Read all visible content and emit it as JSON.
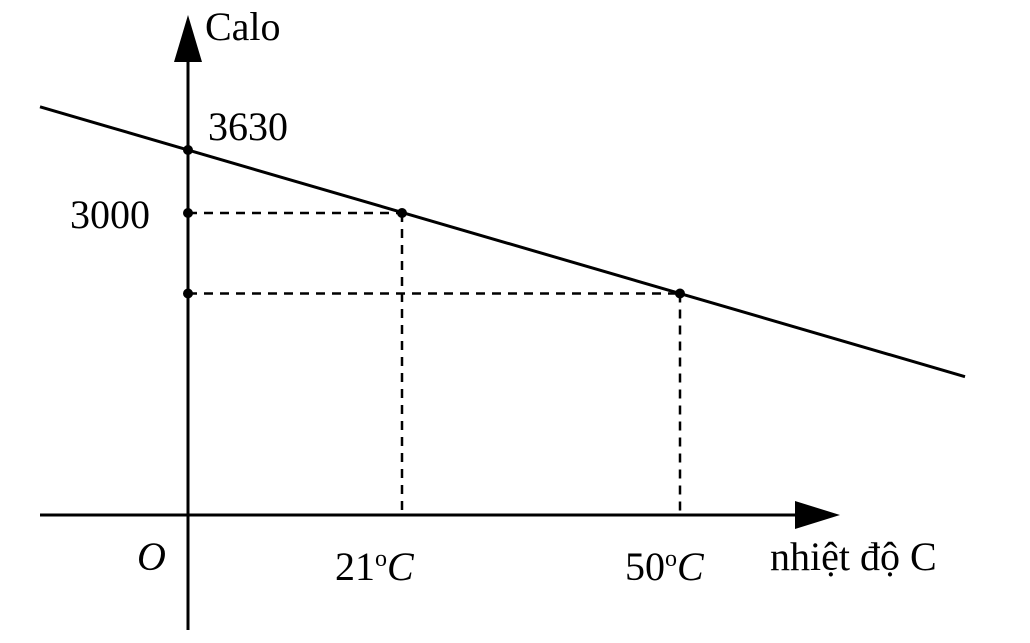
{
  "chart_data": {
    "type": "line",
    "title": "",
    "xlabel": "nhiệt độ C",
    "ylabel": "Calo",
    "origin_label": "O",
    "x_ticks": [
      {
        "value": 21,
        "number": "21",
        "sup": "o",
        "unit": "C"
      },
      {
        "value": 50,
        "number": "50",
        "sup": "o",
        "unit": "C"
      }
    ],
    "y_ticks": [
      {
        "value": 3630,
        "label": "3630"
      },
      {
        "value": 3000,
        "label": "3000"
      }
    ],
    "points": [
      {
        "x": 0,
        "y": 3630
      },
      {
        "x": 21,
        "y": 3000
      },
      {
        "x": 50,
        "y": 2130
      }
    ],
    "grid": false,
    "guides": "dashed",
    "color": "#000000"
  }
}
